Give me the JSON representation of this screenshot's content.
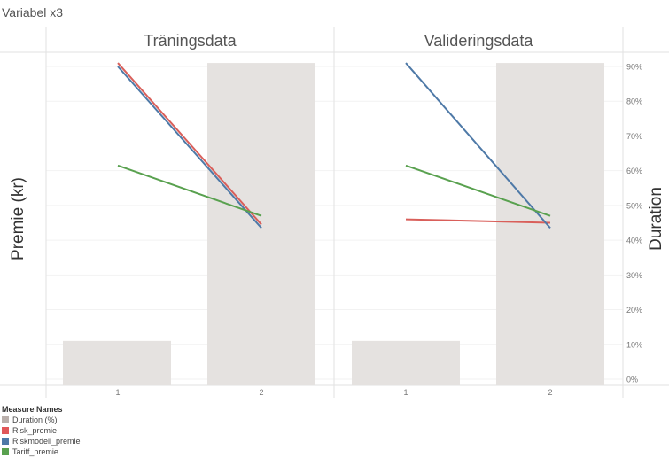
{
  "page_title": "Variabel x3",
  "chart_data": {
    "type": "bar+line",
    "panels": [
      {
        "title": "Träningsdata",
        "categories": [
          "1",
          "2"
        ],
        "series": [
          {
            "name": "Duration (%)",
            "kind": "bar",
            "axis": "right",
            "values": [
              11,
              91
            ]
          },
          {
            "name": "Risk_premie",
            "kind": "line",
            "axis": "left",
            "values": [
              91,
              44.5
            ]
          },
          {
            "name": "Riskmodell_premie",
            "kind": "line",
            "axis": "left",
            "values": [
              90,
              43.5
            ]
          },
          {
            "name": "Tariff_premie",
            "kind": "line",
            "axis": "left",
            "values": [
              61.5,
              47
            ]
          }
        ]
      },
      {
        "title": "Valideringsdata",
        "categories": [
          "1",
          "2"
        ],
        "series": [
          {
            "name": "Duration (%)",
            "kind": "bar",
            "axis": "right",
            "values": [
              11,
              91
            ]
          },
          {
            "name": "Risk_premie",
            "kind": "line",
            "axis": "left",
            "values": [
              46,
              45
            ]
          },
          {
            "name": "Riskmodell_premie",
            "kind": "line",
            "axis": "left",
            "values": [
              91,
              43.5
            ]
          },
          {
            "name": "Tariff_premie",
            "kind": "line",
            "axis": "left",
            "values": [
              61.5,
              47
            ]
          }
        ]
      }
    ],
    "ylabel_left": "Premie (kr)",
    "ylabel_right": "Duration",
    "yticks_right": [
      "0%",
      "10%",
      "20%",
      "30%",
      "40%",
      "50%",
      "60%",
      "70%",
      "80%",
      "90%"
    ],
    "ylim_right": [
      0,
      93
    ],
    "grid": true,
    "legend_title": "Measure Names",
    "legend_position": "bottom-left",
    "colors": {
      "Duration (%)": "#e5e2e0",
      "Risk_premie": "#d95f5a",
      "Riskmodell_premie": "#4e79a7",
      "Tariff_premie": "#59a14f"
    },
    "legend_colors": {
      "Duration (%)": "#bab0ac",
      "Risk_premie": "#e15759",
      "Riskmodell_premie": "#4e79a7",
      "Tariff_premie": "#59a14f"
    }
  }
}
